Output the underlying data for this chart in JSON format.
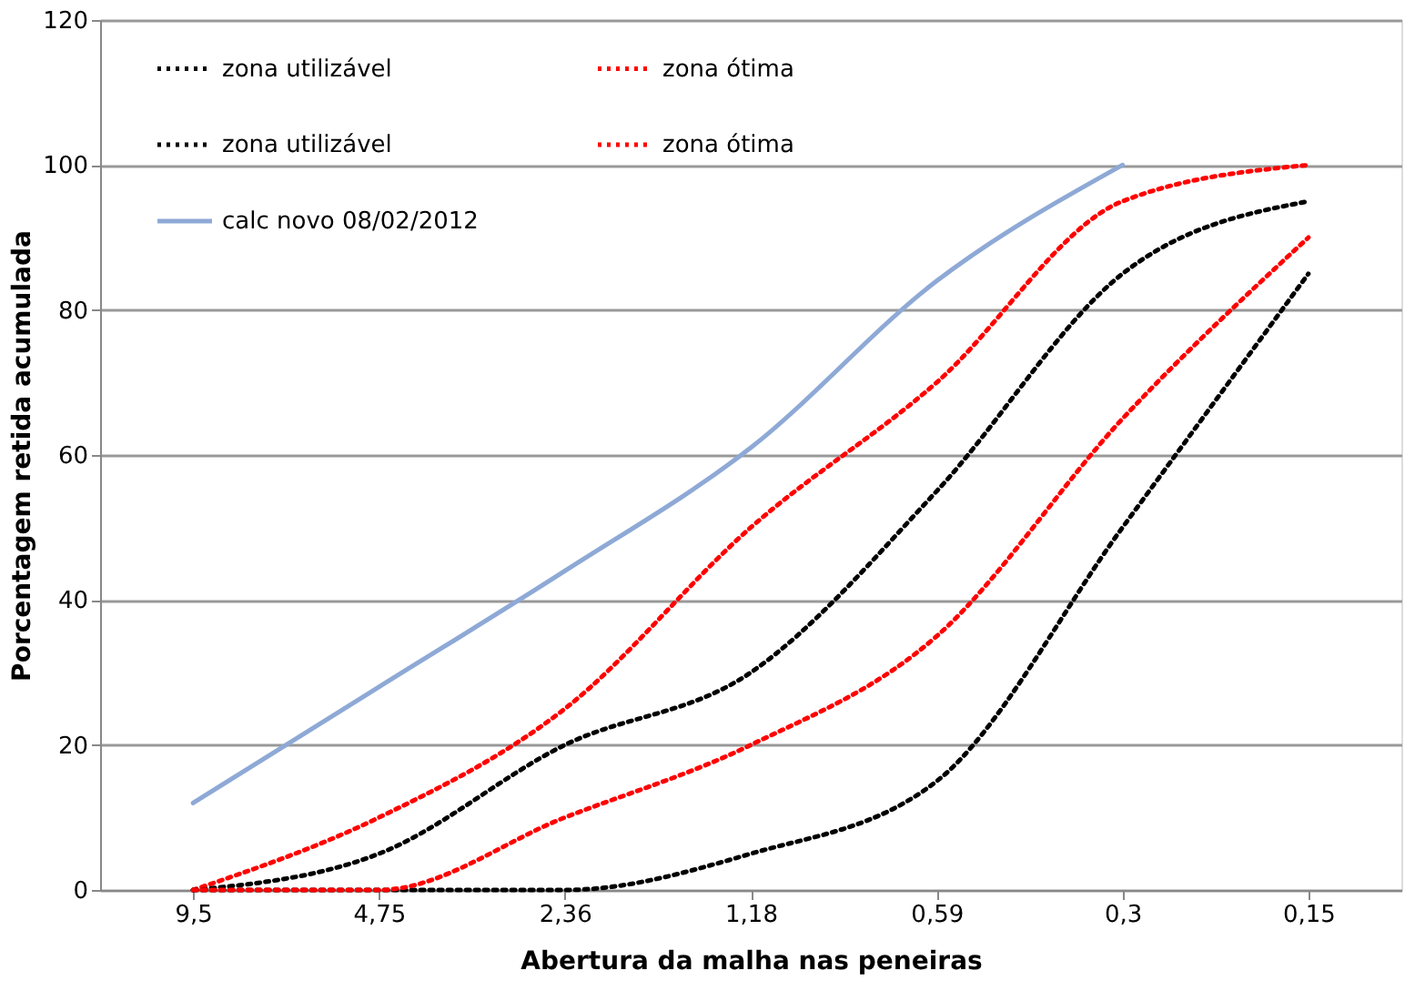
{
  "chart_data": {
    "type": "line",
    "xlabel": "Abertura da malha nas peneiras",
    "ylabel": "Porcentagem retida acumulada",
    "categories": [
      "9,5",
      "4,75",
      "2,36",
      "1,18",
      "0,59",
      "0,3",
      "0,15"
    ],
    "series": [
      {
        "name": "zona utilizável",
        "color": "#000000",
        "line_style": "dotted",
        "values": [
          0,
          5,
          20,
          30,
          55,
          85,
          95
        ]
      },
      {
        "name": "zona ótima",
        "color": "#ff0000",
        "line_style": "dotted",
        "values": [
          0,
          10,
          25,
          50,
          70,
          95,
          100
        ]
      },
      {
        "name": "zona utilizável",
        "color": "#000000",
        "line_style": "dotted",
        "values": [
          0,
          0,
          0,
          5,
          15,
          50,
          85
        ]
      },
      {
        "name": "zona ótima",
        "color": "#ff0000",
        "line_style": "dotted",
        "values": [
          0,
          0,
          10,
          20,
          35,
          65,
          90
        ]
      },
      {
        "name": "calc novo 08/02/2012",
        "color": "#8ea9d6",
        "line_style": "solid",
        "values": [
          12,
          28,
          44,
          61,
          84,
          100,
          null
        ]
      }
    ],
    "ylim": [
      0,
      120
    ],
    "yticks": [
      0,
      20,
      40,
      60,
      80,
      100,
      120
    ],
    "grid": "y",
    "legend": "top",
    "marker": "none"
  }
}
